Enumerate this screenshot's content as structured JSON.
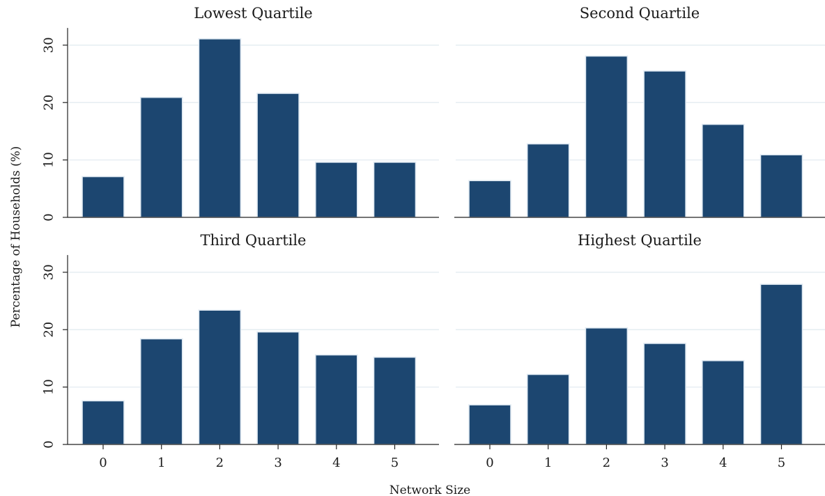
{
  "chart_data": {
    "type": "bar",
    "ylabel": "Percentage of Households (%)",
    "xlabel": "Network Size",
    "categories": [
      "0",
      "1",
      "2",
      "3",
      "4",
      "5"
    ],
    "yticks": [
      0,
      10,
      20,
      30
    ],
    "ylim": [
      0,
      33
    ],
    "grid": true,
    "bar_color": "#1c4670",
    "bar_edge_color": "#dfe9f2",
    "panels": [
      {
        "title": "Lowest Quartile",
        "values": [
          7.1,
          20.9,
          31.1,
          21.6,
          9.6,
          9.6
        ]
      },
      {
        "title": "Second Quartile",
        "values": [
          6.4,
          12.8,
          28.1,
          25.5,
          16.2,
          10.9
        ]
      },
      {
        "title": "Third Quartile",
        "values": [
          7.6,
          18.4,
          23.4,
          19.6,
          15.6,
          15.2
        ]
      },
      {
        "title": "Highest Quartile",
        "values": [
          6.9,
          12.2,
          20.3,
          17.6,
          14.6,
          27.9
        ]
      }
    ]
  }
}
